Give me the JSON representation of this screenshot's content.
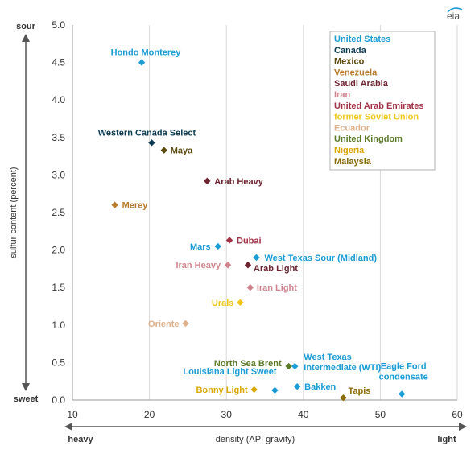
{
  "logo_text": "eia",
  "chart_data": {
    "type": "scatter",
    "xlabel": "density (API gravity)",
    "ylabel": "sulfur content (percent)",
    "xlim": [
      10,
      60
    ],
    "ylim": [
      0,
      5
    ],
    "x_ticks": [
      "10",
      "20",
      "30",
      "40",
      "50",
      "60"
    ],
    "y_ticks": [
      "0.0",
      "0.5",
      "1.0",
      "1.5",
      "2.0",
      "2.5",
      "3.0",
      "3.5",
      "4.0",
      "4.5",
      "5.0"
    ],
    "grid": "vertical",
    "legend_position": "top-right",
    "x_axis_words": {
      "low": "heavy",
      "high": "light"
    },
    "y_axis_words": {
      "low": "sweet",
      "high": "sour"
    },
    "series": [
      {
        "name": "United States",
        "color": "#1a9cd6"
      },
      {
        "name": "Canada",
        "color": "#0b3b53"
      },
      {
        "name": "Mexico",
        "color": "#5c4a0d"
      },
      {
        "name": "Venezuela",
        "color": "#b87a2a"
      },
      {
        "name": "Saudi Arabia",
        "color": "#6e2430"
      },
      {
        "name": "Iran",
        "color": "#d2848e"
      },
      {
        "name": "United Arab Emirates",
        "color": "#a33045"
      },
      {
        "name": "former Soviet Union",
        "color": "#f2c618"
      },
      {
        "name": "Ecuador",
        "color": "#e0b08a"
      },
      {
        "name": "United Kingdom",
        "color": "#5b7a28"
      },
      {
        "name": "Nigeria",
        "color": "#d9a700"
      },
      {
        "name": "Malaysia",
        "color": "#8a6a05"
      }
    ],
    "points": [
      {
        "label": "Hondo Monterey",
        "series": "United States",
        "x": 19,
        "y": 4.5
      },
      {
        "label": "Western Canada Select",
        "series": "Canada",
        "x": 20.3,
        "y": 3.43
      },
      {
        "label": "Maya",
        "series": "Mexico",
        "x": 21.9,
        "y": 3.33
      },
      {
        "label": "Arab Heavy",
        "series": "Saudi Arabia",
        "x": 27.5,
        "y": 2.92
      },
      {
        "label": "Merey",
        "series": "Venezuela",
        "x": 15.5,
        "y": 2.6
      },
      {
        "label": "Mars",
        "series": "United States",
        "x": 28.9,
        "y": 2.05
      },
      {
        "label": "Dubai",
        "series": "United Arab Emirates",
        "x": 30.4,
        "y": 2.13
      },
      {
        "label": "West Texas Sour (Midland)",
        "series": "United States",
        "x": 33.9,
        "y": 1.9
      },
      {
        "label": "Iran Heavy",
        "series": "Iran",
        "x": 30.2,
        "y": 1.8
      },
      {
        "label": "Arab Light",
        "series": "Saudi Arabia",
        "x": 32.8,
        "y": 1.8
      },
      {
        "label": "Iran Light",
        "series": "Iran",
        "x": 33.1,
        "y": 1.5
      },
      {
        "label": "Urals",
        "series": "former Soviet Union",
        "x": 31.8,
        "y": 1.3
      },
      {
        "label": "Oriente",
        "series": "Ecuador",
        "x": 24.7,
        "y": 1.02
      },
      {
        "label": "North Sea Brent",
        "series": "United Kingdom",
        "x": 38.1,
        "y": 0.45
      },
      {
        "label": "West Texas Intermediate (WTI)",
        "series": "United States",
        "x": 38.9,
        "y": 0.45
      },
      {
        "label": "Louisiana Light Sweet",
        "series": "United States",
        "x": 36.3,
        "y": 0.13
      },
      {
        "label": "Bonny Light",
        "series": "Nigeria",
        "x": 33.6,
        "y": 0.14
      },
      {
        "label": "Bakken",
        "series": "United States",
        "x": 39.2,
        "y": 0.18
      },
      {
        "label": "Tapis",
        "series": "Malaysia",
        "x": 45.2,
        "y": 0.03
      },
      {
        "label": "Eagle Ford condensate",
        "series": "United States",
        "x": 52.8,
        "y": 0.08
      }
    ]
  }
}
